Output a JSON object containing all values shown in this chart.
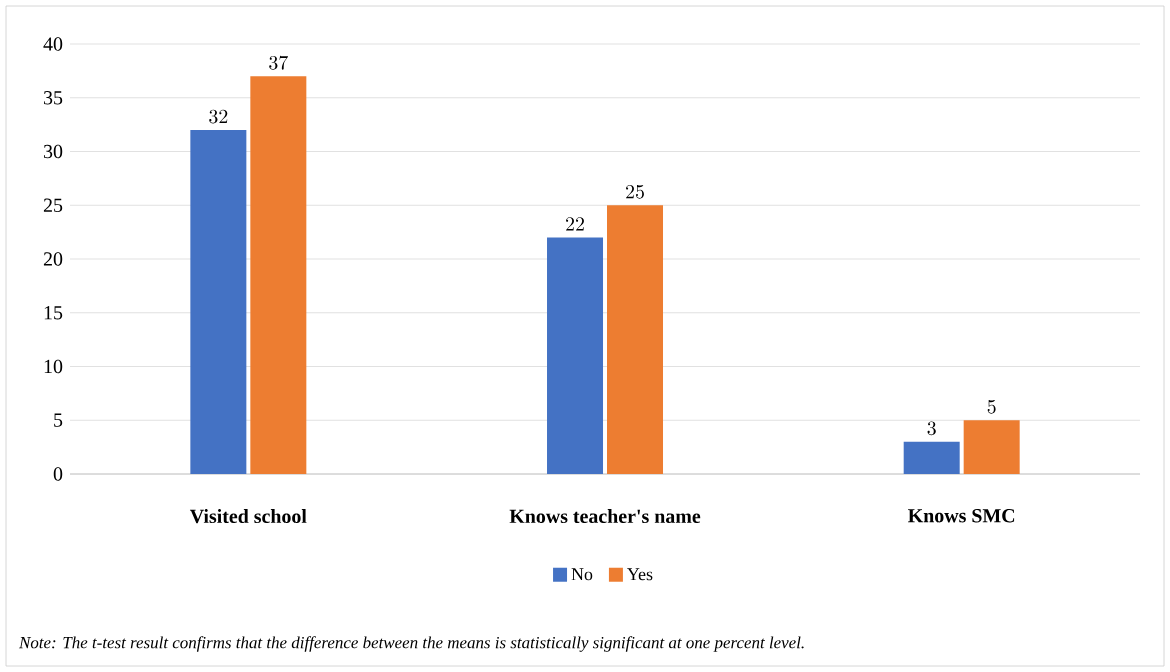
{
  "chart_data": {
    "type": "bar",
    "categories": [
      "Visited school",
      "Knows teacher's name",
      "Knows SMC"
    ],
    "series": [
      {
        "name": "No",
        "color": "#4472c4",
        "values": [
          32,
          22,
          3
        ]
      },
      {
        "name": "Yes",
        "color": "#ed7d31",
        "values": [
          37,
          25,
          5
        ]
      }
    ],
    "ylim": [
      0,
      40
    ],
    "yticks": [
      0,
      5,
      10,
      15,
      20,
      25,
      30,
      35,
      40
    ],
    "grid": "y",
    "legend": "bottom",
    "data_labels": true,
    "annotations": [
      "Note: The t-test result confirms that the difference between the means is statistically significant at one percent level."
    ]
  }
}
